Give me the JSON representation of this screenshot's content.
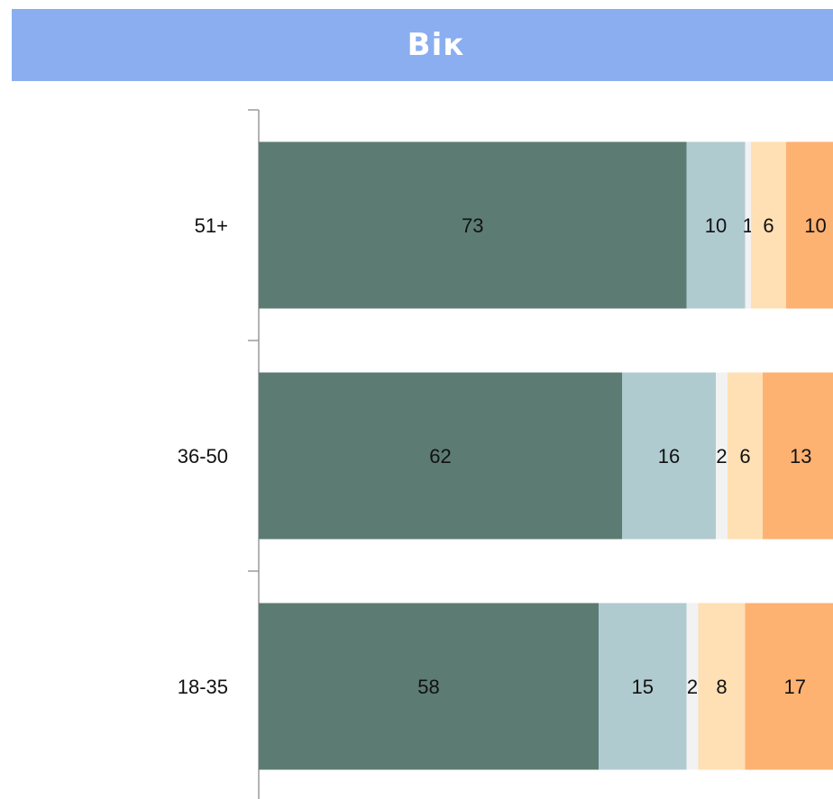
{
  "header": {
    "title": "Вік"
  },
  "colors": {
    "header_bg": "#8aaef0",
    "segments": [
      "#5c7b73",
      "#b0cbd0",
      "#f2f2f2",
      "#ffdfb4",
      "#fdb272"
    ]
  },
  "chart_data": {
    "type": "bar",
    "orientation": "horizontal",
    "stacked": true,
    "title": "Вік",
    "categories": [
      "51+",
      "36-50",
      "18-35"
    ],
    "series": [
      {
        "values": [
          73,
          62,
          58
        ]
      },
      {
        "values": [
          10,
          16,
          15
        ]
      },
      {
        "values": [
          1,
          2,
          2
        ]
      },
      {
        "values": [
          6,
          6,
          8
        ]
      },
      {
        "values": [
          10,
          13,
          17
        ]
      }
    ],
    "value_labels": [
      [
        "73",
        "10",
        "1",
        "6",
        "10"
      ],
      [
        "62",
        "16",
        "2",
        "6",
        "13"
      ],
      [
        "58",
        "15",
        "2",
        "8",
        "17"
      ]
    ],
    "grid": false,
    "legend": "none"
  }
}
